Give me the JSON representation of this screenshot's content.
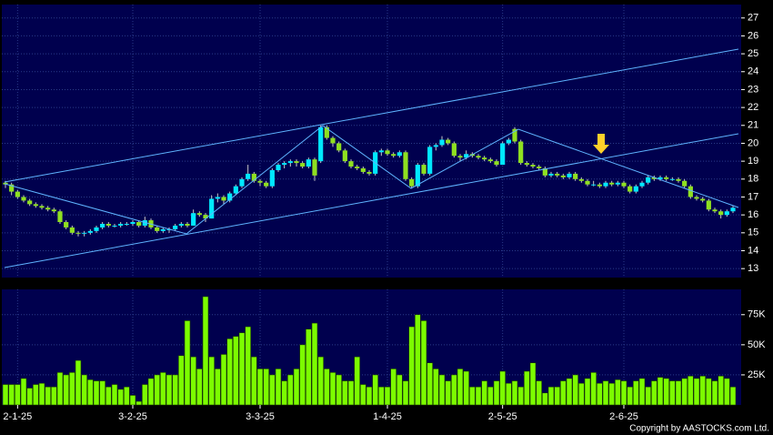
{
  "source": "Copyright by AASTOCKS.com Ltd.",
  "chart_data": [
    {
      "type": "candlestick",
      "up_color": "#00e8ff",
      "down_color": "#8fe020",
      "background": "#00004e",
      "grid": true,
      "ylim": [
        12.5,
        27.75
      ],
      "yticks": [
        13,
        14,
        15,
        16,
        17,
        18,
        19,
        20,
        21,
        22,
        23,
        24,
        25,
        26,
        27
      ],
      "series": [
        {
          "values": [
            [
              17.8,
              17.9,
              17.5,
              17.7
            ],
            [
              17.7,
              17.8,
              17.1,
              17.3
            ],
            [
              17.3,
              17.4,
              16.9,
              17.0
            ],
            [
              17.0,
              17.1,
              16.7,
              16.8
            ],
            [
              16.8,
              16.9,
              16.5,
              16.6
            ],
            [
              16.6,
              16.7,
              16.4,
              16.5
            ],
            [
              16.5,
              16.6,
              16.3,
              16.4
            ],
            [
              16.4,
              16.5,
              16.2,
              16.3
            ],
            [
              16.3,
              16.4,
              16.1,
              16.2
            ],
            [
              16.2,
              16.3,
              15.5,
              15.6
            ],
            [
              15.6,
              15.7,
              15.2,
              15.3
            ],
            [
              15.3,
              15.4,
              14.9,
              15.0
            ],
            [
              15.0,
              15.1,
              14.8,
              14.95
            ],
            [
              14.95,
              15.1,
              14.8,
              15.0
            ],
            [
              15.0,
              15.2,
              14.9,
              15.1
            ],
            [
              15.1,
              15.4,
              15.0,
              15.3
            ],
            [
              15.3,
              15.6,
              15.2,
              15.5
            ],
            [
              15.5,
              15.6,
              15.3,
              15.4
            ],
            [
              15.4,
              15.5,
              15.3,
              15.4
            ],
            [
              15.4,
              15.6,
              15.3,
              15.5
            ],
            [
              15.5,
              15.6,
              15.4,
              15.5
            ],
            [
              15.5,
              15.7,
              15.4,
              15.6
            ],
            [
              15.6,
              15.7,
              15.3,
              15.4
            ],
            [
              15.4,
              15.9,
              15.3,
              15.7
            ],
            [
              15.7,
              15.8,
              15.2,
              15.3
            ],
            [
              15.3,
              15.4,
              15.0,
              15.1
            ],
            [
              15.1,
              15.3,
              15.0,
              15.2
            ],
            [
              15.2,
              15.3,
              15.0,
              15.2
            ],
            [
              15.2,
              15.5,
              15.1,
              15.4
            ],
            [
              15.4,
              15.6,
              15.3,
              15.5
            ],
            [
              15.5,
              15.6,
              15.3,
              15.4
            ],
            [
              15.4,
              16.3,
              15.4,
              16.1
            ],
            [
              16.1,
              16.2,
              15.9,
              16.0
            ],
            [
              16.0,
              16.1,
              15.6,
              15.8
            ],
            [
              15.8,
              17.1,
              15.8,
              16.9
            ],
            [
              16.9,
              17.2,
              16.7,
              17.0
            ],
            [
              17.0,
              17.1,
              16.6,
              16.8
            ],
            [
              16.8,
              17.3,
              16.7,
              17.2
            ],
            [
              17.2,
              17.7,
              17.1,
              17.6
            ],
            [
              17.6,
              18.1,
              17.5,
              18.0
            ],
            [
              18.0,
              18.8,
              17.9,
              18.3
            ],
            [
              18.3,
              18.4,
              17.8,
              17.9
            ],
            [
              17.9,
              18.0,
              17.6,
              17.8
            ],
            [
              17.8,
              17.9,
              17.5,
              17.6
            ],
            [
              17.6,
              18.6,
              17.5,
              18.5
            ],
            [
              18.5,
              18.9,
              18.4,
              18.8
            ],
            [
              18.8,
              19.0,
              18.6,
              18.9
            ],
            [
              18.9,
              19.1,
              18.7,
              19.0
            ],
            [
              19.0,
              19.1,
              18.7,
              18.9
            ],
            [
              18.9,
              19.0,
              18.6,
              18.7
            ],
            [
              18.7,
              19.2,
              18.6,
              19.1
            ],
            [
              19.1,
              19.2,
              17.9,
              18.2
            ],
            [
              19.0,
              21.0,
              18.9,
              20.9
            ],
            [
              20.9,
              21.0,
              20.2,
              20.3
            ],
            [
              20.3,
              20.4,
              19.8,
              20.0
            ],
            [
              20.0,
              20.1,
              19.5,
              19.6
            ],
            [
              19.6,
              19.7,
              18.9,
              19.0
            ],
            [
              19.0,
              19.1,
              18.6,
              18.7
            ],
            [
              18.7,
              18.8,
              18.5,
              18.6
            ],
            [
              18.6,
              18.7,
              18.3,
              18.4
            ],
            [
              18.4,
              18.5,
              18.2,
              18.3
            ],
            [
              18.3,
              19.6,
              18.2,
              19.5
            ],
            [
              19.5,
              19.7,
              19.3,
              19.6
            ],
            [
              19.6,
              19.7,
              19.3,
              19.4
            ],
            [
              19.4,
              19.5,
              19.2,
              19.3
            ],
            [
              19.3,
              19.6,
              19.2,
              19.5
            ],
            [
              19.5,
              19.6,
              17.9,
              18.0
            ],
            [
              18.0,
              18.1,
              17.5,
              17.6
            ],
            [
              17.6,
              18.9,
              17.5,
              18.8
            ],
            [
              18.8,
              18.9,
              18.2,
              18.3
            ],
            [
              18.3,
              19.9,
              18.2,
              19.8
            ],
            [
              19.8,
              20.0,
              19.6,
              19.9
            ],
            [
              19.9,
              20.4,
              19.8,
              20.2
            ],
            [
              20.2,
              20.3,
              19.9,
              20.0
            ],
            [
              20.0,
              20.1,
              19.2,
              19.3
            ],
            [
              19.3,
              19.4,
              19.0,
              19.2
            ],
            [
              19.2,
              19.6,
              19.1,
              19.4
            ],
            [
              19.4,
              19.5,
              19.2,
              19.3
            ],
            [
              19.3,
              19.4,
              19.1,
              19.2
            ],
            [
              19.2,
              19.3,
              19.0,
              19.1
            ],
            [
              19.1,
              19.2,
              18.9,
              19.0
            ],
            [
              19.0,
              19.1,
              18.7,
              18.8
            ],
            [
              18.8,
              20.1,
              18.8,
              20.0
            ],
            [
              20.0,
              20.3,
              19.9,
              20.2
            ],
            [
              20.8,
              20.9,
              20.0,
              20.1
            ],
            [
              20.1,
              20.2,
              18.8,
              18.9
            ],
            [
              18.9,
              19.0,
              18.7,
              18.8
            ],
            [
              18.8,
              18.9,
              18.6,
              18.7
            ],
            [
              18.7,
              18.8,
              18.5,
              18.6
            ],
            [
              18.6,
              18.7,
              18.1,
              18.2
            ],
            [
              18.2,
              18.4,
              18.1,
              18.3
            ],
            [
              18.3,
              18.4,
              18.1,
              18.2
            ],
            [
              18.2,
              18.3,
              18.0,
              18.1
            ],
            [
              18.1,
              18.4,
              18.0,
              18.3
            ],
            [
              18.3,
              18.4,
              17.9,
              18.0
            ],
            [
              18.0,
              18.1,
              17.8,
              17.9
            ],
            [
              17.9,
              18.0,
              17.6,
              17.7
            ],
            [
              17.7,
              17.9,
              17.6,
              17.7
            ],
            [
              17.7,
              17.8,
              17.5,
              17.6
            ],
            [
              17.6,
              17.9,
              17.5,
              17.8
            ],
            [
              17.8,
              17.9,
              17.6,
              17.7
            ],
            [
              17.7,
              17.9,
              17.6,
              17.8
            ],
            [
              17.8,
              17.9,
              17.5,
              17.6
            ],
            [
              17.6,
              17.7,
              17.2,
              17.3
            ],
            [
              17.3,
              17.7,
              17.2,
              17.6
            ],
            [
              17.6,
              17.9,
              17.5,
              17.8
            ],
            [
              17.8,
              18.2,
              17.7,
              18.1
            ],
            [
              18.1,
              18.2,
              17.9,
              18.0
            ],
            [
              18.0,
              18.2,
              17.9,
              18.1
            ],
            [
              18.1,
              18.2,
              17.9,
              18.0
            ],
            [
              18.0,
              18.1,
              17.9,
              18.0
            ],
            [
              18.0,
              18.1,
              17.8,
              17.9
            ],
            [
              17.9,
              18.0,
              17.5,
              17.6
            ],
            [
              17.6,
              17.7,
              16.9,
              17.0
            ],
            [
              17.0,
              17.1,
              16.8,
              16.9
            ],
            [
              16.9,
              17.0,
              16.7,
              16.8
            ],
            [
              16.8,
              16.9,
              16.2,
              16.3
            ],
            [
              16.3,
              16.4,
              16.1,
              16.2
            ],
            [
              16.2,
              16.3,
              15.8,
              16.0
            ],
            [
              16.0,
              16.3,
              15.9,
              16.2
            ],
            [
              16.2,
              16.5,
              16.1,
              16.4
            ]
          ]
        }
      ]
    },
    {
      "type": "bar",
      "color": "#7cfc00",
      "background": "#00004e",
      "grid": true,
      "ylim": [
        0,
        96000
      ],
      "yticks": [
        {
          "value": 25000,
          "label": "25K"
        },
        {
          "value": 50000,
          "label": "50K"
        },
        {
          "value": 75000,
          "label": "75K"
        }
      ],
      "categories": [
        null,
        null,
        "2-1-25",
        null,
        null,
        null,
        null,
        null,
        null,
        null,
        null,
        null,
        null,
        null,
        null,
        null,
        null,
        null,
        null,
        null,
        null,
        "3-2-25",
        null,
        null,
        null,
        null,
        null,
        null,
        null,
        null,
        null,
        null,
        null,
        null,
        null,
        null,
        null,
        null,
        null,
        null,
        null,
        null,
        "3-3-25",
        null,
        null,
        null,
        null,
        null,
        null,
        null,
        null,
        null,
        null,
        null,
        null,
        null,
        null,
        null,
        null,
        null,
        null,
        null,
        null,
        "1-4-25",
        null,
        null,
        null,
        null,
        null,
        null,
        null,
        null,
        null,
        null,
        null,
        null,
        null,
        null,
        null,
        null,
        null,
        null,
        "2-5-25",
        null,
        null,
        null,
        null,
        null,
        null,
        null,
        null,
        null,
        null,
        null,
        null,
        null,
        null,
        null,
        null,
        null,
        null,
        null,
        "2-6-25",
        null,
        null,
        null,
        null,
        null,
        null,
        null,
        null,
        null,
        null,
        null,
        null,
        null,
        null,
        null,
        null,
        null,
        null
      ],
      "values": [
        17000,
        17000,
        17000,
        22000,
        14000,
        17000,
        18000,
        15000,
        15000,
        27000,
        25000,
        27000,
        37000,
        25000,
        21000,
        20000,
        20000,
        15000,
        17000,
        13000,
        15000,
        8000,
        3000,
        17000,
        22000,
        25000,
        27000,
        25000,
        25000,
        41000,
        70000,
        40000,
        30000,
        90000,
        40000,
        30000,
        42000,
        55000,
        57000,
        60000,
        65000,
        40000,
        30000,
        30000,
        25000,
        30000,
        20000,
        25000,
        30000,
        50000,
        63000,
        68000,
        40000,
        30000,
        27000,
        25000,
        20000,
        20000,
        40000,
        17000,
        15000,
        25000,
        15000,
        15000,
        30000,
        25000,
        20000,
        65000,
        75000,
        70000,
        35000,
        30000,
        25000,
        20000,
        25000,
        30000,
        28000,
        15000,
        15000,
        20000,
        15000,
        20000,
        28000,
        18000,
        20000,
        15000,
        28000,
        35000,
        20000,
        10000,
        15000,
        15000,
        20000,
        22000,
        25000,
        18000,
        22000,
        27000,
        18000,
        20000,
        18000,
        21000,
        20000,
        15000,
        20000,
        22000,
        15000,
        20000,
        23000,
        22000,
        20000,
        20000,
        22000,
        24000,
        22000,
        24000,
        22000,
        20000,
        24000,
        22000,
        15000
      ]
    }
  ]
}
